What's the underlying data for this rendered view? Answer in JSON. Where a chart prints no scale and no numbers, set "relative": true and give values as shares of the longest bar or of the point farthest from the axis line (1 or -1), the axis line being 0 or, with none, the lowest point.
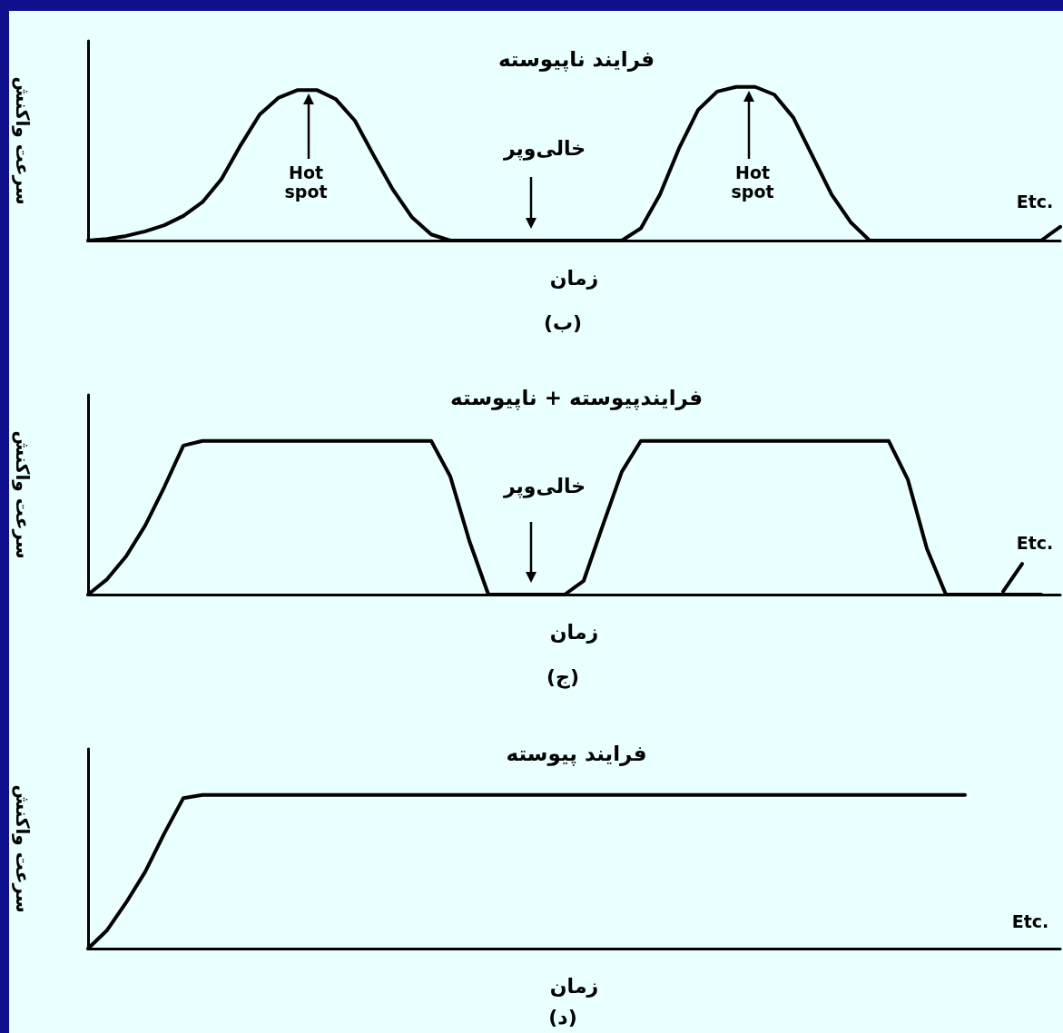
{
  "chart_data": [
    {
      "type": "line",
      "title": "فرایند ناپیوسته",
      "xlabel": "زمان",
      "ylabel": "سرعت واکنش",
      "relative": true,
      "annotations": [
        "Hot spot",
        "Hot spot",
        "خالی‌وپر",
        "Etc.",
        "(ب)"
      ],
      "categories": [
        null,
        null,
        null,
        null,
        null,
        null,
        null,
        null,
        null,
        null,
        null,
        null,
        null,
        null,
        null,
        null,
        null,
        null,
        null,
        null,
        null,
        null,
        null,
        null,
        null,
        null,
        null,
        null,
        null,
        null,
        null,
        null,
        null,
        null,
        null,
        null,
        null,
        null,
        null,
        null,
        null,
        null,
        null,
        null,
        null,
        null,
        null,
        null,
        null,
        null,
        null,
        null
      ],
      "series": [
        {
          "color": "#000000",
          "values": [
            0,
            0.01,
            0.03,
            0.06,
            0.1,
            0.16,
            0.25,
            0.4,
            0.62,
            0.82,
            0.93,
            0.98,
            0.98,
            0.92,
            0.78,
            0.55,
            0.33,
            0.15,
            0.04,
            0,
            0,
            0,
            0,
            0,
            0,
            0,
            0,
            0,
            0,
            0.08,
            0.3,
            0.6,
            0.85,
            0.97,
            1,
            1,
            0.95,
            0.8,
            0.55,
            0.3,
            0.12,
            0,
            0,
            0,
            0,
            0,
            0,
            0,
            0,
            0,
            0,
            null
          ]
        },
        {
          "color": "#000000",
          "values": [
            null,
            null,
            null,
            null,
            null,
            null,
            null,
            null,
            null,
            null,
            null,
            null,
            null,
            null,
            null,
            null,
            null,
            null,
            null,
            null,
            null,
            null,
            null,
            null,
            null,
            null,
            null,
            null,
            null,
            null,
            null,
            null,
            null,
            null,
            null,
            null,
            null,
            null,
            null,
            null,
            null,
            null,
            null,
            null,
            null,
            null,
            null,
            null,
            null,
            null,
            0,
            0.09
          ]
        }
      ]
    },
    {
      "type": "line",
      "title": "فرایندپیوسته + ناپیوسته",
      "xlabel": "زمان",
      "ylabel": "سرعت واکنش",
      "relative": true,
      "annotations": [
        "خالی‌وپر",
        "Etc.",
        "(ج)"
      ],
      "categories": [
        null,
        null,
        null,
        null,
        null,
        null,
        null,
        null,
        null,
        null,
        null,
        null,
        null,
        null,
        null,
        null,
        null,
        null,
        null,
        null,
        null,
        null,
        null,
        null,
        null,
        null,
        null,
        null,
        null,
        null,
        null,
        null,
        null,
        null,
        null,
        null,
        null,
        null,
        null,
        null,
        null,
        null,
        null,
        null,
        null,
        null,
        null,
        null,
        null,
        null,
        null,
        null
      ],
      "series": [
        {
          "color": "#000000",
          "values": [
            0,
            0.1,
            0.25,
            0.45,
            0.7,
            0.97,
            1,
            1,
            1,
            1,
            1,
            1,
            1,
            1,
            1,
            1,
            1,
            1,
            1,
            0.77,
            0.35,
            0,
            0,
            0,
            0,
            0,
            0.09,
            0.45,
            0.8,
            1,
            1,
            1,
            1,
            1,
            1,
            1,
            1,
            1,
            1,
            1,
            1,
            1,
            1,
            0.75,
            0.3,
            0,
            0,
            0,
            0,
            0,
            0,
            null
          ]
        },
        {
          "color": "#000000",
          "values": [
            null,
            null,
            null,
            null,
            null,
            null,
            null,
            null,
            null,
            null,
            null,
            null,
            null,
            null,
            null,
            null,
            null,
            null,
            null,
            null,
            null,
            null,
            null,
            null,
            null,
            null,
            null,
            null,
            null,
            null,
            null,
            null,
            null,
            null,
            null,
            null,
            null,
            null,
            null,
            null,
            null,
            null,
            null,
            null,
            null,
            null,
            null,
            null,
            0.02,
            0.2,
            null,
            null
          ]
        }
      ]
    },
    {
      "type": "line",
      "title": "فرایند پیوسته",
      "xlabel": "زمان",
      "ylabel": "سرعت واکنش",
      "relative": true,
      "annotations": [
        "Etc.",
        "(د)"
      ],
      "categories": [
        null,
        null,
        null,
        null,
        null,
        null,
        null,
        null,
        null,
        null,
        null,
        null,
        null,
        null,
        null,
        null,
        null,
        null,
        null,
        null,
        null,
        null,
        null,
        null,
        null,
        null,
        null,
        null,
        null,
        null,
        null,
        null,
        null,
        null,
        null,
        null,
        null,
        null,
        null,
        null,
        null,
        null,
        null,
        null,
        null,
        null,
        null,
        null,
        null,
        null,
        null,
        null
      ],
      "series": [
        {
          "color": "#000000",
          "values": [
            0,
            0.12,
            0.3,
            0.5,
            0.75,
            0.98,
            1,
            1,
            1,
            1,
            1,
            1,
            1,
            1,
            1,
            1,
            1,
            1,
            1,
            1,
            1,
            1,
            1,
            1,
            1,
            1,
            1,
            1,
            1,
            1,
            1,
            1,
            1,
            1,
            1,
            1,
            1,
            1,
            1,
            1,
            1,
            1,
            1,
            1,
            1,
            1,
            1,
            null,
            null,
            null,
            null,
            null
          ]
        }
      ]
    }
  ]
}
